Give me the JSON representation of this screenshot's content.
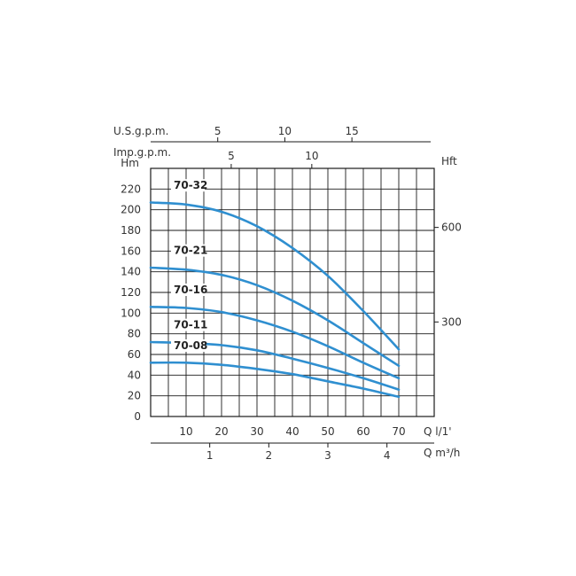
{
  "chart_data": {
    "type": "line",
    "title": "",
    "ylabel": "Hm",
    "ylim": [
      0,
      240
    ],
    "y_ticks": [
      0,
      20,
      40,
      60,
      80,
      100,
      120,
      140,
      160,
      180,
      200,
      220
    ],
    "xlabel_lpm": "Q l/1'",
    "xlim_lpm": [
      0,
      80
    ],
    "x_ticks_lpm": [
      10,
      20,
      30,
      40,
      50,
      60,
      70
    ],
    "xlabel_m3h": "Q m³/h",
    "x_ticks_m3h": [
      1,
      2,
      3,
      4
    ],
    "xlabel_usgpm": "U.S.g.p.m.",
    "x_ticks_usgpm": [
      5,
      10,
      15
    ],
    "xlabel_impgpm": "Imp.g.p.m.",
    "x_ticks_impgpm": [
      5,
      10
    ],
    "ylabel_right": "Hft",
    "y_ticks_ft": [
      300,
      600
    ],
    "grid": true,
    "series_color": "#2f8fd0",
    "series": [
      {
        "name": "70-32",
        "x": [
          0,
          10,
          20,
          30,
          40,
          50,
          60,
          70
        ],
        "values": [
          207,
          205,
          198,
          184,
          163,
          136,
          102,
          65
        ]
      },
      {
        "name": "70-21",
        "x": [
          0,
          10,
          20,
          30,
          40,
          50,
          60,
          70
        ],
        "values": [
          144,
          142,
          137,
          127,
          112,
          93,
          71,
          49
        ]
      },
      {
        "name": "70-16",
        "x": [
          0,
          10,
          20,
          30,
          40,
          50,
          60,
          70
        ],
        "values": [
          106,
          105,
          101,
          93,
          82,
          68,
          52,
          37
        ]
      },
      {
        "name": "70-11",
        "x": [
          0,
          10,
          20,
          30,
          40,
          50,
          60,
          70
        ],
        "values": [
          72,
          71,
          69,
          64,
          56,
          47,
          37,
          26
        ]
      },
      {
        "name": "70-08",
        "x": [
          0,
          10,
          20,
          30,
          40,
          50,
          60,
          70
        ],
        "values": [
          52,
          52,
          50,
          46,
          41,
          34,
          27,
          19
        ]
      }
    ]
  }
}
